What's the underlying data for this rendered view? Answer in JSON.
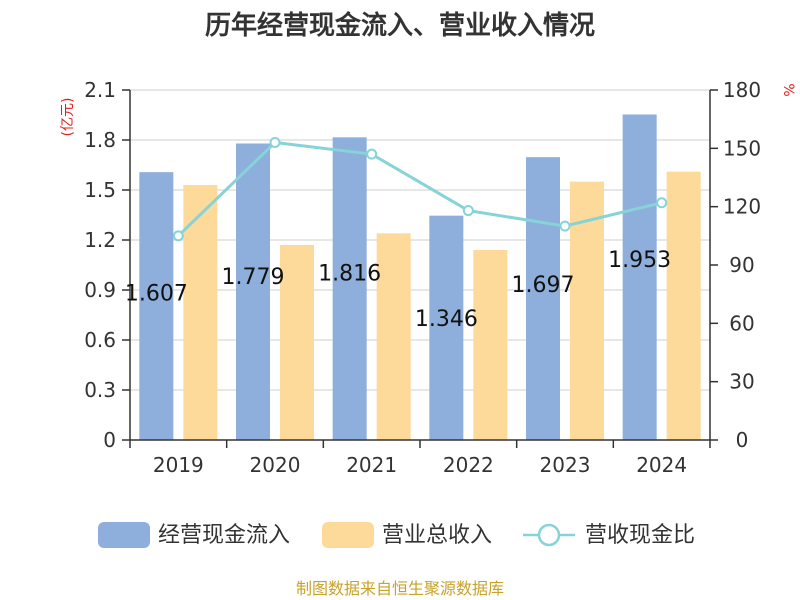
{
  "chart_data": {
    "type": "bar",
    "title": "历年经营现金流入、营业收入情况",
    "categories": [
      "2019",
      "2020",
      "2021",
      "2022",
      "2023",
      "2024"
    ],
    "series": [
      {
        "name": "经营现金流入",
        "kind": "bar",
        "axis": "left",
        "color": "#8eaedb",
        "values": [
          1.607,
          1.779,
          1.816,
          1.346,
          1.697,
          1.953
        ],
        "labels": [
          "1.607",
          "1.779",
          "1.816",
          "1.346",
          "1.697",
          "1.953"
        ]
      },
      {
        "name": "营业总收入",
        "kind": "bar",
        "axis": "left",
        "color": "#fdd99a",
        "values": [
          1.53,
          1.17,
          1.24,
          1.14,
          1.55,
          1.61
        ]
      },
      {
        "name": "营收现金比",
        "kind": "line",
        "axis": "right",
        "color": "#86d3d8",
        "values": [
          105,
          153,
          147,
          118,
          110,
          122
        ]
      }
    ],
    "y_left": {
      "unit": "(亿元)",
      "ylim": [
        0,
        2.1
      ],
      "ticks": [
        "0",
        "0.3",
        "0.6",
        "0.9",
        "1.2",
        "1.5",
        "1.8",
        "2.1"
      ]
    },
    "y_right": {
      "unit": "%",
      "ylim": [
        0,
        180
      ],
      "ticks": [
        "0",
        "30",
        "60",
        "90",
        "120",
        "150",
        "180"
      ]
    },
    "grid": true,
    "legend": {
      "placement": "bottom"
    },
    "source": "制图数据来自恒生聚源数据库"
  }
}
